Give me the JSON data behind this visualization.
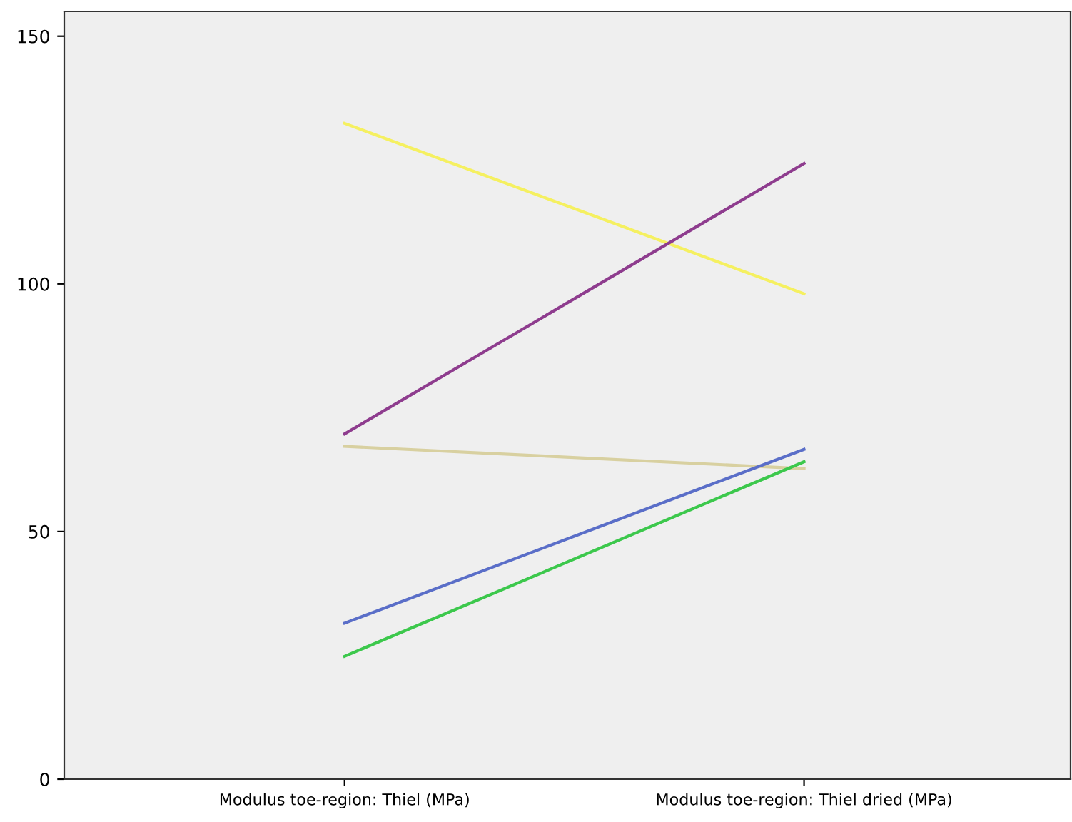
{
  "chart_data": {
    "type": "line",
    "categories": [
      "Modulus toe-region: Thiel (MPa)",
      "Modulus toe-region: Thiel dried (MPa)"
    ],
    "series": [
      {
        "color": "#f5f060",
        "values": [
          132.4,
          98.0
        ]
      },
      {
        "color": "#8e3c8e",
        "values": [
          69.7,
          124.3
        ]
      },
      {
        "color": "#d8d0a0",
        "values": [
          67.2,
          62.7
        ]
      },
      {
        "color": "#5a6ec8",
        "values": [
          31.5,
          66.6
        ]
      },
      {
        "color": "#3cc84c",
        "values": [
          24.8,
          64.1
        ]
      }
    ],
    "ylim": [
      0,
      155
    ],
    "yticks": [
      0,
      50,
      100,
      150
    ],
    "grid": false,
    "legend": false,
    "marker": "none",
    "line_style": "solid"
  }
}
